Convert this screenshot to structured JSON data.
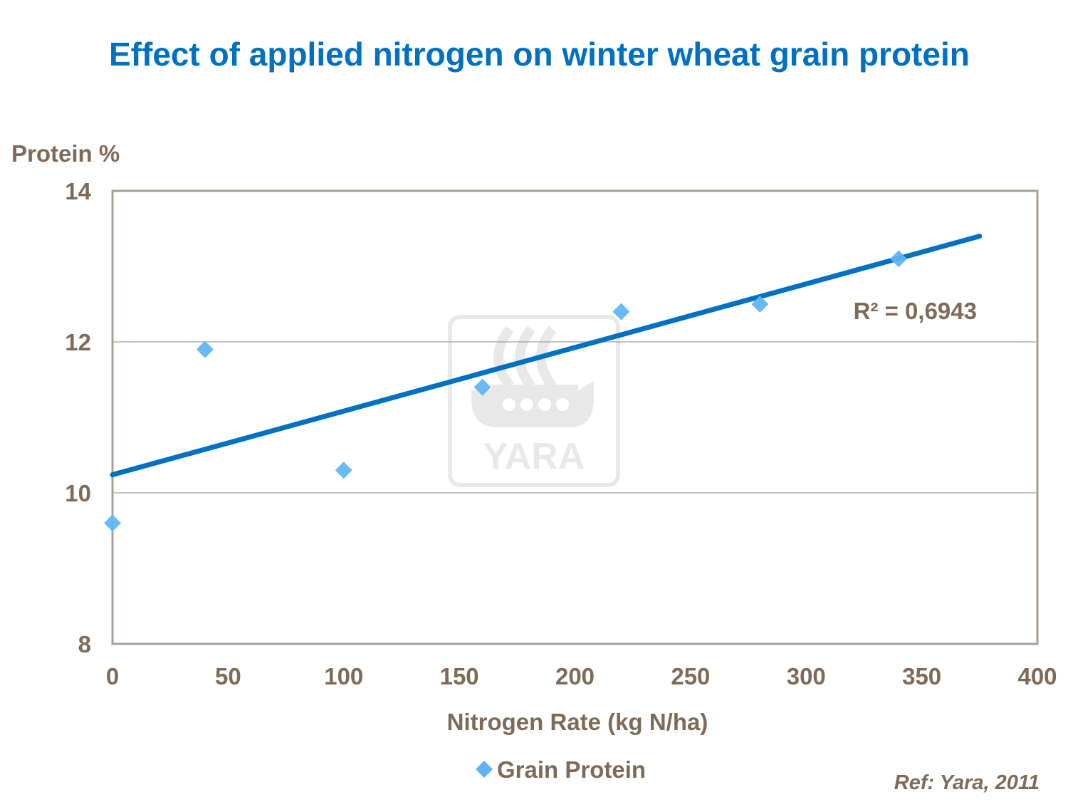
{
  "chart_data": {
    "type": "scatter",
    "title": "Effect of applied nitrogen on winter wheat grain protein",
    "xlabel": "Nitrogen Rate (kg N/ha)",
    "ylabel": "Protein %",
    "xlim": [
      0,
      400
    ],
    "ylim": [
      8,
      14
    ],
    "x_ticks": [
      "0",
      "50",
      "100",
      "150",
      "200",
      "250",
      "300",
      "350",
      "400"
    ],
    "y_ticks": [
      "8",
      "10",
      "12",
      "14"
    ],
    "grid": "horizontal",
    "legend_position": "bottom",
    "series": [
      {
        "name": "Grain Protein",
        "color": "#5BB4F5",
        "marker": "diamond",
        "points": [
          {
            "x": 0,
            "y": 9.6
          },
          {
            "x": 40,
            "y": 11.9
          },
          {
            "x": 100,
            "y": 10.3
          },
          {
            "x": 160,
            "y": 11.4
          },
          {
            "x": 220,
            "y": 12.4
          },
          {
            "x": 280,
            "y": 12.5
          },
          {
            "x": 340,
            "y": 13.1
          }
        ]
      }
    ],
    "trendline": {
      "type": "linear",
      "color": "#0070C0",
      "x_range": [
        0,
        375
      ],
      "y_range": [
        10.24,
        13.4
      ],
      "label": "R² = 0,6943"
    },
    "watermark": "YARA",
    "reference": "Ref: Yara, 2011"
  }
}
